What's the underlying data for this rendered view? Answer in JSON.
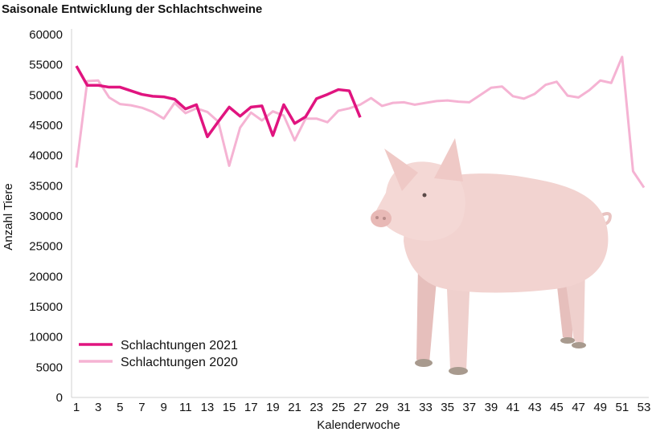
{
  "chart_data": {
    "type": "line",
    "title": "Saisonale Entwicklung der Schlachtschweine",
    "xlabel": "Kalenderwoche",
    "ylabel": "Anzahl Tiere",
    "xlim": [
      1,
      53
    ],
    "ylim": [
      0,
      60000
    ],
    "y_ticks": [
      "0",
      "5000",
      "10000",
      "15000",
      "20000",
      "25000",
      "30000",
      "35000",
      "40000",
      "45000",
      "50000",
      "55000",
      "60000"
    ],
    "x_ticks": [
      "1",
      "3",
      "5",
      "7",
      "9",
      "11",
      "13",
      "15",
      "17",
      "19",
      "21",
      "23",
      "25",
      "27",
      "29",
      "31",
      "33",
      "35",
      "37",
      "39",
      "41",
      "43",
      "45",
      "47",
      "49",
      "51",
      "53"
    ],
    "grid": false,
    "legend_position": "bottom-left",
    "series": [
      {
        "name": "Schlachtungen 2021",
        "color": "#e0147f",
        "x": [
          1,
          2,
          3,
          4,
          5,
          6,
          7,
          8,
          9,
          10,
          11,
          12,
          13,
          14,
          15,
          16,
          17,
          18,
          19,
          20,
          21,
          22,
          23,
          24,
          25,
          26,
          27
        ],
        "values": [
          54800,
          51600,
          51600,
          51300,
          51300,
          50700,
          50100,
          49800,
          49700,
          49300,
          47700,
          48400,
          43100,
          45600,
          48000,
          46500,
          48000,
          48200,
          43300,
          48400,
          45300,
          46400,
          49400,
          50100,
          50900,
          50700,
          46300
        ]
      },
      {
        "name": "Schlachtungen 2020",
        "color": "#f5b3d3",
        "x": [
          1,
          2,
          3,
          4,
          5,
          6,
          7,
          8,
          9,
          10,
          11,
          12,
          13,
          14,
          15,
          16,
          17,
          18,
          19,
          20,
          21,
          22,
          23,
          24,
          25,
          26,
          27,
          28,
          29,
          30,
          31,
          32,
          33,
          34,
          35,
          36,
          37,
          38,
          39,
          40,
          41,
          42,
          43,
          44,
          45,
          46,
          47,
          48,
          49,
          50,
          51,
          52,
          53
        ],
        "values": [
          38000,
          52300,
          52400,
          49600,
          48500,
          48300,
          47900,
          47200,
          46100,
          48700,
          47000,
          47800,
          47200,
          45600,
          38300,
          44600,
          47100,
          45800,
          47300,
          46600,
          42500,
          46100,
          46100,
          45500,
          47400,
          47800,
          48400,
          49500,
          48200,
          48700,
          48800,
          48400,
          48700,
          49000,
          49100,
          48900,
          48800,
          50000,
          51200,
          51400,
          49800,
          49400,
          50200,
          51700,
          52200,
          49900,
          49600,
          50800,
          52400,
          52000,
          56300,
          37400,
          34700
        ]
      }
    ]
  }
}
